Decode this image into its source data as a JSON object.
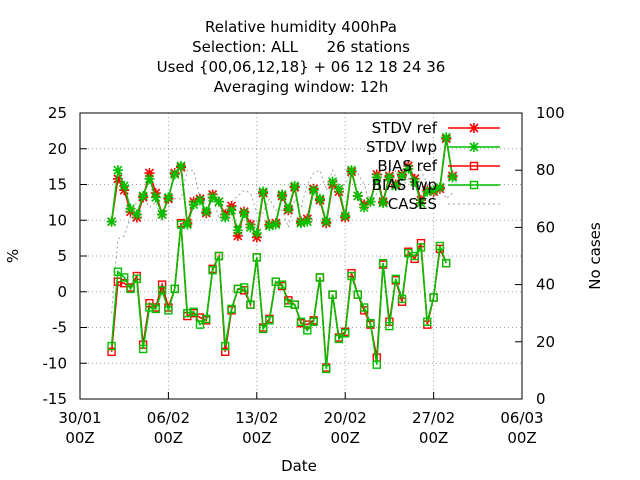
{
  "chart_data": {
    "type": "line",
    "title_lines": [
      "Relative humidity 400hPa",
      "Selection: ALL      26 stations",
      "Used {00,06,12,18} + 06 12 18 24 36",
      "Averaging window: 12h"
    ],
    "xlabel": "Date",
    "ylabel": "%",
    "y2label": "No cases",
    "xlim": [
      0,
      35
    ],
    "ylim": [
      -15,
      25
    ],
    "y2lim": [
      0,
      100
    ],
    "x_ticks": [
      {
        "pos": 0,
        "line1": "30/01",
        "line2": "00Z"
      },
      {
        "pos": 7,
        "line1": "06/02",
        "line2": "00Z"
      },
      {
        "pos": 14,
        "line1": "13/02",
        "line2": "00Z"
      },
      {
        "pos": 21,
        "line1": "20/02",
        "line2": "00Z"
      },
      {
        "pos": 28,
        "line1": "27/02",
        "line2": "00Z"
      },
      {
        "pos": 35,
        "line1": "06/03",
        "line2": "00Z"
      }
    ],
    "y_ticks": [
      "-15",
      "-10",
      "-5",
      "0",
      "5",
      "10",
      "15",
      "20",
      "25"
    ],
    "y2_ticks": [
      "0",
      "20",
      "40",
      "60",
      "80",
      "100"
    ],
    "grid": true,
    "legend_position": "top-right",
    "x": [
      2.5,
      3.0,
      3.5,
      4.0,
      4.5,
      5.0,
      5.5,
      6.0,
      6.5,
      7.0,
      7.5,
      8.0,
      8.5,
      9.0,
      9.5,
      10.0,
      10.5,
      11.0,
      11.5,
      12.0,
      12.5,
      13.0,
      13.5,
      14.0,
      14.5,
      15.0,
      15.5,
      16.0,
      16.5,
      17.0,
      17.5,
      18.0,
      18.5,
      19.0,
      19.5,
      20.0,
      20.5,
      21.0,
      21.5,
      22.0,
      22.5,
      23.0,
      23.5,
      24.0,
      24.5,
      25.0,
      25.5,
      26.0,
      26.5,
      27.0,
      27.5,
      28.0,
      28.5,
      29.0,
      29.5,
      30.0
    ],
    "series": [
      {
        "name": "STDV ref",
        "color": "#ff0000",
        "marker": "star",
        "values": [
          9.8,
          15.8,
          14.2,
          11.2,
          10.4,
          13.2,
          16.6,
          13.8,
          10.8,
          13.0,
          16.6,
          17.4,
          9.6,
          12.6,
          13.0,
          11.0,
          13.6,
          12.6,
          10.8,
          12.0,
          7.8,
          11.2,
          9.4,
          7.6,
          13.8,
          9.4,
          9.6,
          13.4,
          11.4,
          14.6,
          9.8,
          10.2,
          14.4,
          12.8,
          9.6,
          15.0,
          14.0,
          10.4,
          16.8,
          13.4,
          12.2,
          12.6,
          16.4,
          12.6,
          16.2,
          15.0,
          16.4,
          17.6,
          15.8,
          12.8,
          14.2,
          14.0,
          14.4,
          21.4,
          16.2,
          null
        ]
      },
      {
        "name": "STDV lwp",
        "color": "#00c000",
        "marker": "star",
        "values": [
          9.8,
          17.0,
          14.8,
          11.6,
          10.8,
          13.4,
          15.8,
          13.2,
          10.8,
          13.2,
          16.4,
          17.6,
          9.4,
          12.2,
          12.8,
          11.2,
          13.2,
          12.6,
          10.4,
          11.4,
          8.6,
          11.0,
          9.0,
          8.2,
          14.0,
          9.2,
          9.4,
          13.6,
          11.6,
          14.8,
          9.6,
          9.8,
          14.2,
          13.0,
          9.8,
          15.4,
          14.4,
          10.6,
          17.0,
          13.4,
          11.8,
          12.6,
          16.0,
          12.4,
          16.0,
          14.8,
          16.2,
          17.2,
          15.4,
          12.4,
          14.0,
          14.2,
          14.6,
          21.6,
          16.0,
          null
        ]
      },
      {
        "name": "BIAS ref",
        "color": "#ff0000",
        "marker": "square",
        "values": [
          -8.4,
          1.4,
          1.2,
          0.6,
          2.2,
          -7.4,
          -1.6,
          -2.2,
          1.0,
          -2.2,
          0.4,
          9.6,
          -3.4,
          -3.0,
          -3.6,
          -4.0,
          3.2,
          5.0,
          -8.4,
          -2.6,
          0.4,
          0.2,
          -1.8,
          4.8,
          -5.0,
          -3.8,
          1.4,
          0.8,
          -1.2,
          -1.8,
          -4.4,
          -4.6,
          -4.0,
          2.0,
          -10.6,
          -0.4,
          -6.4,
          -5.6,
          2.6,
          -0.4,
          -2.6,
          -4.6,
          -9.2,
          3.8,
          -4.2,
          1.6,
          -1.4,
          5.6,
          4.6,
          6.8,
          -4.6,
          -0.8,
          6.0,
          4.0,
          null,
          null
        ]
      },
      {
        "name": "BIAS lwp",
        "color": "#00c000",
        "marker": "square",
        "values": [
          -7.6,
          2.8,
          2.0,
          0.4,
          1.8,
          -8.0,
          -2.2,
          -2.4,
          0.2,
          -2.6,
          0.4,
          9.4,
          -3.0,
          -2.8,
          -4.6,
          -3.8,
          3.0,
          5.0,
          -7.6,
          -2.4,
          0.4,
          0.6,
          -1.8,
          4.8,
          -5.2,
          -4.0,
          1.4,
          1.0,
          -1.6,
          -1.8,
          -4.2,
          -5.4,
          -4.2,
          2.0,
          -10.8,
          -0.4,
          -6.6,
          -5.8,
          2.2,
          -0.4,
          -2.2,
          -4.4,
          -10.2,
          4.0,
          -4.8,
          1.8,
          -1.0,
          5.4,
          5.0,
          6.2,
          -4.2,
          -0.8,
          6.4,
          4.0,
          null,
          null
        ]
      },
      {
        "name": "CASES",
        "color": "#a0a0a0",
        "marker": "none",
        "axis": "y2",
        "values": [
          30,
          56,
          57,
          64,
          69,
          71,
          67,
          69,
          62,
          67,
          70,
          70,
          80,
          80,
          70,
          70,
          71,
          63,
          66,
          69,
          71,
          73,
          72,
          65,
          65,
          70,
          66,
          66,
          60,
          70,
          67,
          75,
          79,
          80,
          73,
          80,
          75,
          75,
          80,
          79,
          75,
          68,
          72,
          80,
          77,
          80,
          74,
          77,
          76,
          80,
          75,
          70,
          75,
          70,
          72,
          null
        ]
      }
    ]
  }
}
